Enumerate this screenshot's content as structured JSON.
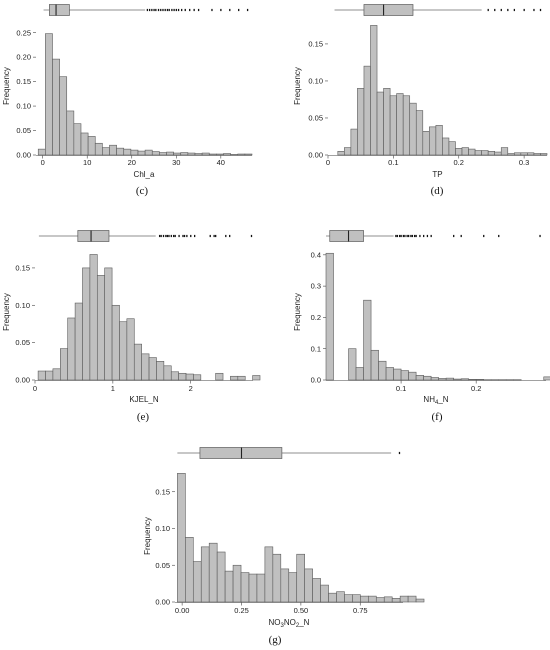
{
  "chart_data": [
    {
      "id": "c",
      "type": "bar",
      "panel_label": "(c)",
      "xlabel": "Chl_a",
      "ylabel": "Frequency",
      "xlim": [
        -1.5,
        47
      ],
      "ylim": [
        0,
        0.28
      ],
      "xticks": [
        0,
        10,
        20,
        30,
        40
      ],
      "yticks": [
        0.0,
        0.05,
        0.1,
        0.15,
        0.2,
        0.25
      ],
      "ytick_labels": [
        "0.00",
        "0.05",
        "0.10",
        "0.15",
        "0.20",
        "0.25"
      ],
      "bin_start": -1,
      "bin_width": 1.6,
      "values": [
        0.012,
        0.248,
        0.196,
        0.16,
        0.09,
        0.064,
        0.045,
        0.038,
        0.024,
        0.015,
        0.02,
        0.014,
        0.012,
        0.01,
        0.008,
        0.01,
        0.007,
        0.005,
        0.006,
        0.004,
        0.005,
        0.004,
        0.003,
        0.004,
        0.002,
        0.002,
        0.003,
        0.001,
        0.002,
        0.002
      ],
      "boxplot": {
        "whisker_low": 0.2,
        "q1": 1.5,
        "median": 3.0,
        "q3": 6.0,
        "whisker_high": 23.0,
        "outliers": [
          23.5,
          24,
          24.5,
          25,
          25.4,
          26,
          26.5,
          27,
          27.5,
          28,
          28.4,
          29,
          29.5,
          30,
          30.5,
          31.2,
          32,
          33,
          34,
          35,
          38,
          40,
          42,
          44,
          46
        ]
      }
    },
    {
      "id": "d",
      "type": "bar",
      "panel_label": "(d)",
      "xlabel": "TP",
      "ylabel": "Frequency",
      "xlim": [
        0.0,
        0.335
      ],
      "ylim": [
        0,
        0.185
      ],
      "xticks": [
        0.0,
        0.1,
        0.2,
        0.3
      ],
      "yticks": [
        0.0,
        0.05,
        0.1,
        0.15
      ],
      "ytick_labels": [
        "0.00",
        "0.05",
        "0.10",
        "0.15"
      ],
      "bin_start": 0.015,
      "bin_width": 0.01,
      "values": [
        0.005,
        0.01,
        0.035,
        0.09,
        0.12,
        0.175,
        0.085,
        0.09,
        0.08,
        0.083,
        0.08,
        0.07,
        0.06,
        0.032,
        0.038,
        0.04,
        0.023,
        0.018,
        0.009,
        0.01,
        0.008,
        0.006,
        0.006,
        0.005,
        0.004,
        0.01,
        0.002,
        0.003,
        0.003,
        0.003,
        0.002,
        0.002
      ],
      "boxplot": {
        "whisker_low": 0.01,
        "q1": 0.055,
        "median": 0.085,
        "q3": 0.13,
        "whisker_high": 0.235,
        "outliers": [
          0.245,
          0.255,
          0.265,
          0.275,
          0.285,
          0.3,
          0.315,
          0.325
        ]
      }
    },
    {
      "id": "e",
      "type": "bar",
      "panel_label": "(e)",
      "xlabel": "KJEL_N",
      "ylabel": "Frequency",
      "xlim": [
        0,
        2.8
      ],
      "ylim": [
        0,
        0.178
      ],
      "xticks": [
        0,
        1,
        2
      ],
      "yticks": [
        0.0,
        0.05,
        0.1,
        0.15
      ],
      "ytick_labels": [
        "0.00",
        "0.05",
        "0.10",
        "0.15"
      ],
      "bin_start": 0.04,
      "bin_width": 0.095,
      "values": [
        0.012,
        0.012,
        0.015,
        0.042,
        0.083,
        0.103,
        0.15,
        0.168,
        0.14,
        0.15,
        0.1,
        0.078,
        0.082,
        0.048,
        0.035,
        0.03,
        0.025,
        0.019,
        0.011,
        0.009,
        0.008,
        0.007,
        0.0,
        0.0,
        0.009,
        0.0,
        0.005,
        0.005,
        0.0,
        0.006
      ],
      "boxplot": {
        "whisker_low": 0.05,
        "q1": 0.55,
        "median": 0.72,
        "q3": 0.95,
        "whisker_high": 1.55,
        "outliers": [
          1.6,
          1.62,
          1.65,
          1.68,
          1.7,
          1.72,
          1.75,
          1.78,
          1.8,
          1.85,
          1.9,
          1.92,
          1.95,
          2.0,
          2.05,
          2.25,
          2.3,
          2.32,
          2.45,
          2.5,
          2.78
        ]
      }
    },
    {
      "id": "f",
      "type": "bar",
      "panel_label": "(f)",
      "xlabel": "NH4_N",
      "xlabel_main": "NH",
      "xlabel_sub": "4",
      "xlabel_tail": "_N",
      "ylabel": "Frequency",
      "xlim": [
        0,
        0.293
      ],
      "ylim": [
        0,
        0.425
      ],
      "xticks": [
        0.1,
        0.2
      ],
      "yticks": [
        0.0,
        0.1,
        0.2,
        0.3,
        0.4
      ],
      "ytick_labels": [
        "0.0",
        "0.1",
        "0.2",
        "0.3",
        "0.4"
      ],
      "bin_start": 0.0,
      "bin_width": 0.01,
      "values": [
        0.405,
        0.0,
        0.0,
        0.1,
        0.04,
        0.255,
        0.095,
        0.06,
        0.04,
        0.035,
        0.03,
        0.025,
        0.015,
        0.012,
        0.008,
        0.005,
        0.006,
        0.003,
        0.004,
        0.002,
        0.002,
        0.001,
        0.001,
        0.001,
        0.001,
        0.001,
        0.0,
        0.0,
        0.0,
        0.01
      ],
      "boxplot": {
        "whisker_low": 0.0,
        "q1": 0.005,
        "median": 0.03,
        "q3": 0.05,
        "whisker_high": 0.09,
        "outliers": [
          0.093,
          0.095,
          0.098,
          0.1,
          0.103,
          0.105,
          0.108,
          0.11,
          0.113,
          0.115,
          0.118,
          0.12,
          0.125,
          0.13,
          0.135,
          0.14,
          0.17,
          0.18,
          0.21,
          0.23,
          0.285
        ]
      }
    },
    {
      "id": "g",
      "type": "bar",
      "panel_label": "(g)",
      "xlabel": "NO3NO2_N",
      "ylabel": "Frequency",
      "xlim": [
        -0.03,
        0.93
      ],
      "ylim": [
        0,
        0.185
      ],
      "xticks": [
        0.0,
        0.25,
        0.5,
        0.75
      ],
      "xtick_labels": [
        "0.00",
        "0.25",
        "0.50",
        "0.75"
      ],
      "yticks": [
        0.0,
        0.05,
        0.1,
        0.15
      ],
      "ytick_labels": [
        "0.00",
        "0.05",
        "0.10",
        "0.15"
      ],
      "bin_start": -0.02,
      "bin_width": 0.0335,
      "values": [
        0.175,
        0.088,
        0.055,
        0.075,
        0.08,
        0.068,
        0.042,
        0.05,
        0.04,
        0.038,
        0.038,
        0.075,
        0.065,
        0.045,
        0.04,
        0.065,
        0.045,
        0.032,
        0.023,
        0.012,
        0.014,
        0.01,
        0.01,
        0.008,
        0.008,
        0.006,
        0.007,
        0.005,
        0.008,
        0.008,
        0.004
      ],
      "boxplot": {
        "whisker_low": -0.02,
        "q1": 0.075,
        "median": 0.25,
        "q3": 0.42,
        "whisker_high": 0.88,
        "outliers": [
          0.915
        ]
      }
    }
  ]
}
